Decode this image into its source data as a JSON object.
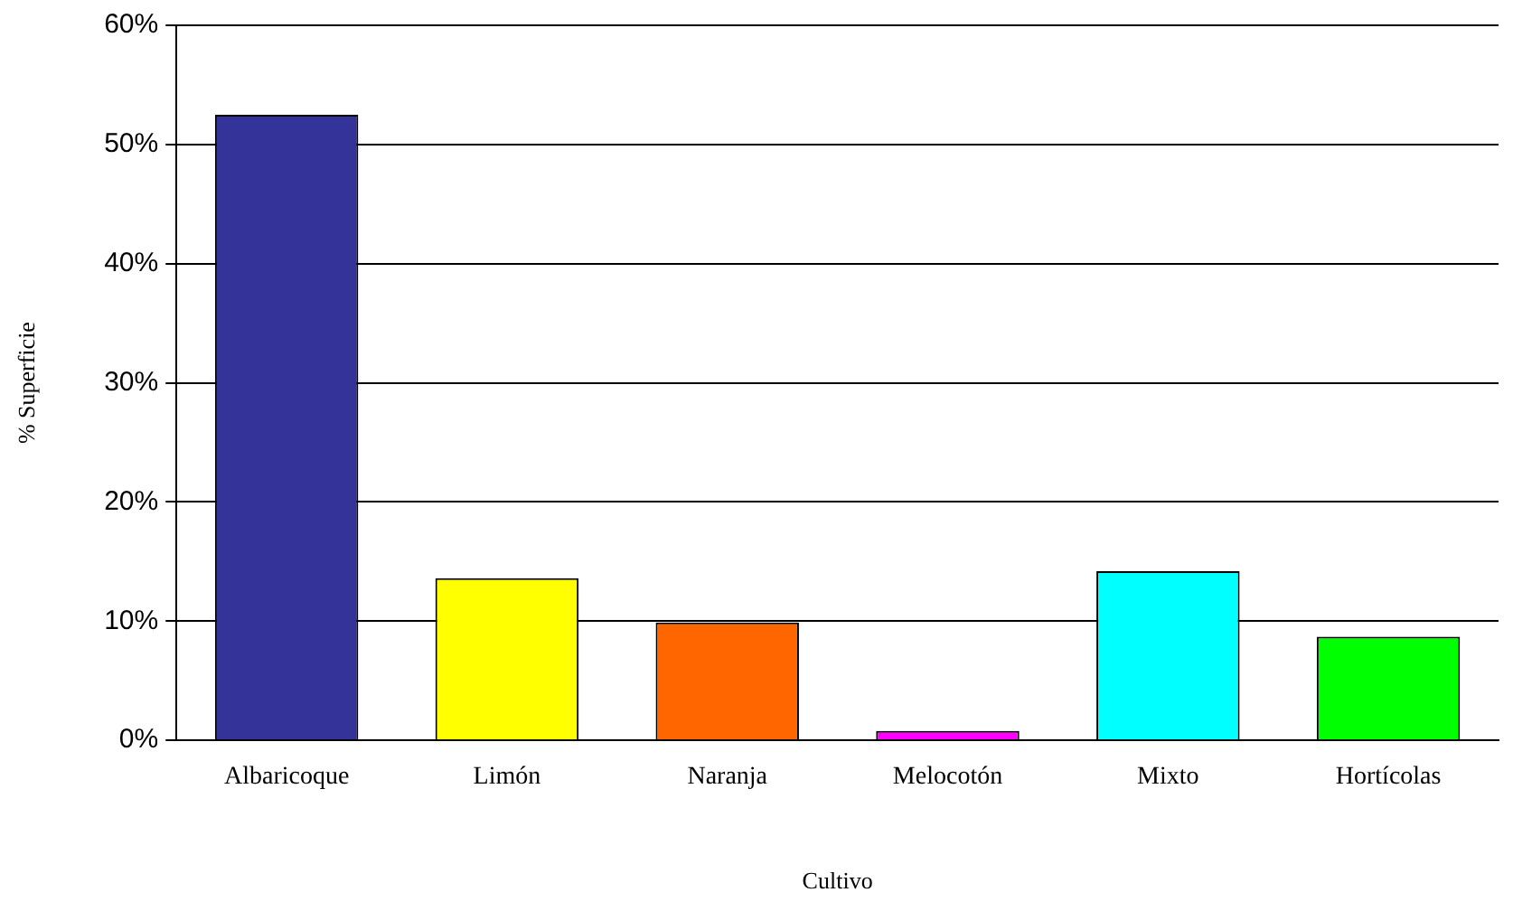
{
  "chart_data": {
    "type": "bar",
    "xlabel": "Cultivo",
    "ylabel": "% Superficie",
    "categories": [
      "Albaricoque",
      "Limón",
      "Naranja",
      "Melocotón",
      "Mixto",
      "Hortícolas"
    ],
    "values": [
      52.5,
      13.6,
      9.9,
      0.8,
      14.2,
      8.7
    ],
    "colors": [
      "#333399",
      "#ffff00",
      "#ff6600",
      "#ff00ff",
      "#00ffff",
      "#00ff00"
    ],
    "ylim": [
      0,
      60
    ],
    "yticks": [
      {
        "value": 0,
        "label": "0%"
      },
      {
        "value": 10,
        "label": "10%"
      },
      {
        "value": 20,
        "label": "20%"
      },
      {
        "value": 30,
        "label": "30%"
      },
      {
        "value": 40,
        "label": "40%"
      },
      {
        "value": 50,
        "label": "50%"
      },
      {
        "value": 60,
        "label": "60%"
      }
    ],
    "grid": "y",
    "legend": false
  }
}
